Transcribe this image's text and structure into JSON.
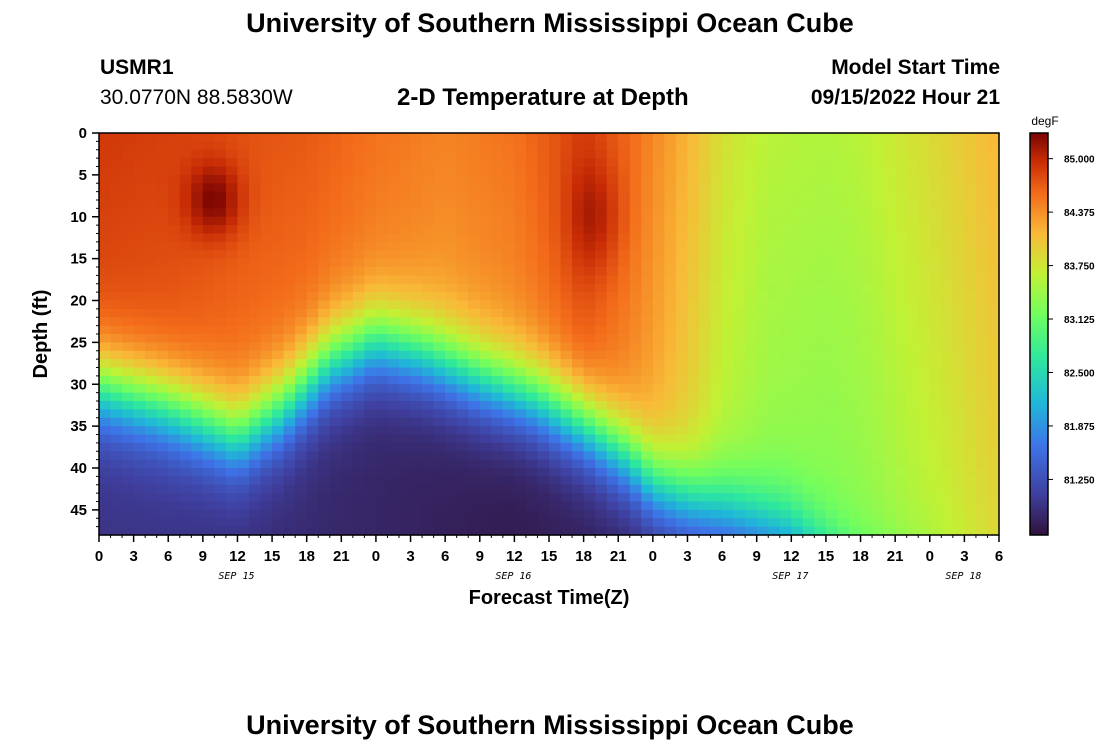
{
  "page": {
    "title": "University of Southern Mississippi Ocean Cube",
    "footer_title": "University of Southern Mississippi Ocean Cube"
  },
  "header": {
    "station": "USMR1",
    "coordinates": "30.0770N  88.5830W",
    "model_start_label": "Model Start Time",
    "model_start_value": "09/15/2022 Hour 21"
  },
  "chart_data": {
    "type": "heatmap",
    "title": "2-D Temperature at Depth",
    "xlabel": "Forecast Time(Z)",
    "ylabel": "Depth (ft)",
    "x_ticks": [
      "0",
      "3",
      "6",
      "9",
      "12",
      "15",
      "18",
      "21",
      "0",
      "3",
      "6",
      "9",
      "12",
      "15",
      "18",
      "21",
      "0",
      "3",
      "6",
      "9",
      "12",
      "15",
      "18",
      "21",
      "0",
      "3",
      "6"
    ],
    "x_range_hours": [
      0,
      78
    ],
    "date_labels": [
      {
        "label": "SEP 15",
        "hour": 12
      },
      {
        "label": "SEP 16",
        "hour": 36
      },
      {
        "label": "SEP 17",
        "hour": 60
      },
      {
        "label": "SEP 18",
        "hour": 75
      }
    ],
    "y_ticks": [
      "0",
      "5",
      "10",
      "15",
      "20",
      "25",
      "30",
      "35",
      "40",
      "45"
    ],
    "y_range_ft": [
      0,
      48
    ],
    "colorbar": {
      "unit": "degF",
      "labels": [
        "85.000",
        "84.375",
        "83.750",
        "83.125",
        "82.500",
        "81.875",
        "81.250"
      ],
      "range": [
        80.6,
        85.3
      ]
    },
    "description_points": [
      {
        "hour": 10,
        "depth": 7,
        "temp": 85.25
      },
      {
        "hour": 36,
        "depth": 46,
        "temp": 80.7
      },
      {
        "hour": 0,
        "depth": 46,
        "temp": 80.9
      },
      {
        "hour": 60,
        "depth": 20,
        "temp": 83.6
      },
      {
        "hour": 75,
        "depth": 20,
        "temp": 84.1
      }
    ]
  }
}
